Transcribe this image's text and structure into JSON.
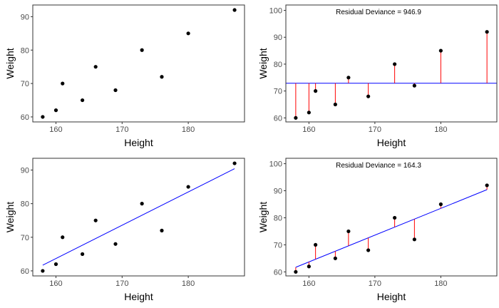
{
  "colors": {
    "points": "#000000",
    "fit_line": "#0000ff",
    "residual_lines": "#ff0000",
    "panel_border": "#333333",
    "tick_text": "#4d4d4d"
  },
  "chart_data": [
    {
      "type": "scatter",
      "xlabel": "Height",
      "ylabel": "Weight",
      "xlim": [
        156.5,
        188.5
      ],
      "ylim": [
        58.5,
        93.5
      ],
      "xticks": [
        160,
        170,
        180
      ],
      "yticks": [
        60,
        70,
        80,
        90
      ],
      "x": [
        158,
        160,
        161,
        164,
        166,
        169,
        173,
        176,
        180,
        187
      ],
      "y": [
        60,
        62,
        70,
        65,
        75,
        68,
        80,
        72,
        85,
        92
      ],
      "grid": false
    },
    {
      "type": "scatter",
      "xlabel": "Height",
      "ylabel": "Weight",
      "annotation": "Residual Deviance = 946.9",
      "xlim": [
        156.5,
        188.5
      ],
      "ylim": [
        58.5,
        102
      ],
      "xticks": [
        160,
        170,
        180
      ],
      "yticks": [
        60,
        70,
        80,
        90,
        100
      ],
      "x": [
        158,
        160,
        161,
        164,
        166,
        169,
        173,
        176,
        180,
        187
      ],
      "y": [
        60,
        62,
        70,
        65,
        75,
        68,
        80,
        72,
        85,
        92
      ],
      "fit_line": {
        "kind": "horizontal",
        "y": 72.9
      },
      "residuals": true,
      "grid": false
    },
    {
      "type": "scatter",
      "xlabel": "Height",
      "ylabel": "Weight",
      "xlim": [
        156.5,
        188.5
      ],
      "ylim": [
        58.5,
        93.5
      ],
      "xticks": [
        160,
        170,
        180
      ],
      "yticks": [
        60,
        70,
        80,
        90
      ],
      "x": [
        158,
        160,
        161,
        164,
        166,
        169,
        173,
        176,
        180,
        187
      ],
      "y": [
        60,
        62,
        70,
        65,
        75,
        68,
        80,
        72,
        85,
        92
      ],
      "fit_line": {
        "kind": "linear",
        "x": [
          158,
          187
        ],
        "y": [
          61.7,
          90.4
        ]
      },
      "grid": false
    },
    {
      "type": "scatter",
      "xlabel": "Height",
      "ylabel": "Weight",
      "annotation": "Residual Deviance = 164.3",
      "xlim": [
        156.5,
        188.5
      ],
      "ylim": [
        58.5,
        102
      ],
      "xticks": [
        160,
        170,
        180
      ],
      "yticks": [
        60,
        70,
        80,
        90,
        100
      ],
      "x": [
        158,
        160,
        161,
        164,
        166,
        169,
        173,
        176,
        180,
        187
      ],
      "y": [
        60,
        62,
        70,
        65,
        75,
        68,
        80,
        72,
        85,
        92
      ],
      "fit_line": {
        "kind": "linear",
        "x": [
          158,
          187
        ],
        "y": [
          61.7,
          90.4
        ]
      },
      "residuals": true,
      "grid": false
    }
  ]
}
